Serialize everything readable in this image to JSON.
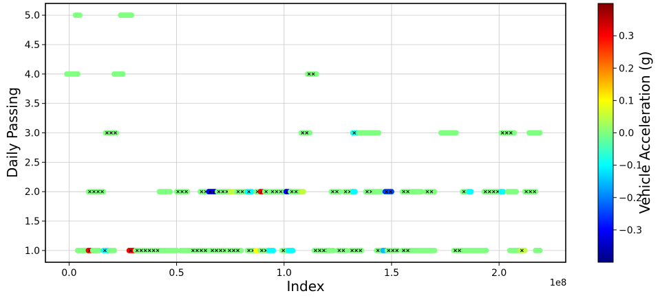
{
  "chart_data": {
    "type": "scatter",
    "xlabel": "Index",
    "ylabel": "Daily Passing",
    "x_offset_label": "1e8",
    "xlim": [
      -0.11,
      2.31
    ],
    "ylim": [
      0.8,
      5.2
    ],
    "xticks": [
      0.0,
      0.5,
      1.0,
      1.5,
      2.0
    ],
    "xtick_labels": [
      "0.0",
      "0.5",
      "1.0",
      "1.5",
      "2.0"
    ],
    "yticks": [
      1.0,
      1.5,
      2.0,
      2.5,
      3.0,
      3.5,
      4.0,
      4.5,
      5.0
    ],
    "ytick_labels": [
      "1.0",
      "1.5",
      "2.0",
      "2.5",
      "3.0",
      "3.5",
      "4.0",
      "4.5",
      "5.0"
    ],
    "grid": true,
    "colorbar": {
      "label": "Vehicle Acceleration (g)",
      "colormap": "jet",
      "range": [
        -0.4,
        0.4
      ],
      "ticks": [
        -0.3,
        -0.2,
        -0.1,
        0.0,
        0.1,
        0.2,
        0.3
      ],
      "tick_labels": [
        "−0.3",
        "−0.2",
        "−0.1",
        "0.0",
        "0.1",
        "0.2",
        "0.3"
      ]
    },
    "segments": [
      {
        "y": 5,
        "x_start": 0.03,
        "x_end": 0.05,
        "color_value": 0.0
      },
      {
        "y": 5,
        "x_start": 0.24,
        "x_end": 0.29,
        "color_value": 0.0
      },
      {
        "y": 4,
        "x_start": -0.01,
        "x_end": 0.04,
        "color_value": 0.0
      },
      {
        "y": 4,
        "x_start": 0.21,
        "x_end": 0.25,
        "color_value": 0.0
      },
      {
        "y": 4,
        "x_start": 1.11,
        "x_end": 1.15,
        "color_value": 0.0,
        "marked": true
      },
      {
        "y": 3,
        "x_start": 0.17,
        "x_end": 0.22,
        "color_value": 0.0,
        "marked": true
      },
      {
        "y": 3,
        "x_start": 1.08,
        "x_end": 1.12,
        "color_value": 0.0,
        "marked": true
      },
      {
        "y": 3,
        "x_start": 1.32,
        "x_end": 1.34,
        "color_value": -0.08,
        "marked": true
      },
      {
        "y": 3,
        "x_start": 1.35,
        "x_end": 1.4,
        "color_value": 0.0
      },
      {
        "y": 3,
        "x_start": 1.4,
        "x_end": 1.44,
        "color_value": 0.0
      },
      {
        "y": 3,
        "x_start": 1.73,
        "x_end": 1.8,
        "color_value": 0.0
      },
      {
        "y": 3,
        "x_start": 2.01,
        "x_end": 2.07,
        "color_value": 0.0,
        "marked": true
      },
      {
        "y": 3,
        "x_start": 2.14,
        "x_end": 2.19,
        "color_value": 0.0
      },
      {
        "y": 2,
        "x_start": 0.09,
        "x_end": 0.16,
        "color_value": 0.0,
        "marked": true
      },
      {
        "y": 2,
        "x_start": 0.42,
        "x_end": 0.47,
        "color_value": 0.0
      },
      {
        "y": 2,
        "x_start": 0.5,
        "x_end": 0.55,
        "color_value": 0.0,
        "marked": true
      },
      {
        "y": 2,
        "x_start": 0.61,
        "x_end": 0.65,
        "color_value": 0.0,
        "marked": true
      },
      {
        "y": 2,
        "x_start": 0.65,
        "x_end": 0.68,
        "color_value": -0.3,
        "marked": true
      },
      {
        "y": 2,
        "x_start": 0.69,
        "x_end": 0.75,
        "color_value": 0.0,
        "marked": true
      },
      {
        "y": 2,
        "x_start": 0.75,
        "x_end": 0.77,
        "color_value": 0.05
      },
      {
        "y": 2,
        "x_start": 0.78,
        "x_end": 0.83,
        "color_value": 0.0,
        "marked": true
      },
      {
        "y": 2,
        "x_start": 0.83,
        "x_end": 0.85,
        "color_value": -0.1,
        "marked": true
      },
      {
        "y": 2,
        "x_start": 0.87,
        "x_end": 0.89,
        "color_value": 0.0,
        "marked": true
      },
      {
        "y": 2,
        "x_start": 0.89,
        "x_end": 0.91,
        "color_value": 0.3,
        "marked": true
      },
      {
        "y": 2,
        "x_start": 0.91,
        "x_end": 0.93,
        "color_value": 0.0,
        "marked": true
      },
      {
        "y": 2,
        "x_start": 0.94,
        "x_end": 1.01,
        "color_value": 0.0,
        "marked": true
      },
      {
        "y": 2,
        "x_start": 1.01,
        "x_end": 1.03,
        "color_value": -0.3,
        "marked": true
      },
      {
        "y": 2,
        "x_start": 1.03,
        "x_end": 1.08,
        "color_value": 0.0,
        "marked": true
      },
      {
        "y": 2,
        "x_start": 1.08,
        "x_end": 1.09,
        "color_value": 0.05
      },
      {
        "y": 2,
        "x_start": 1.22,
        "x_end": 1.26,
        "color_value": 0.0,
        "marked": true
      },
      {
        "y": 2,
        "x_start": 1.28,
        "x_end": 1.32,
        "color_value": 0.0,
        "marked": true
      },
      {
        "y": 2,
        "x_start": 1.32,
        "x_end": 1.33,
        "color_value": -0.1
      },
      {
        "y": 2,
        "x_start": 1.38,
        "x_end": 1.42,
        "color_value": 0.0,
        "marked": true
      },
      {
        "y": 2,
        "x_start": 1.42,
        "x_end": 1.45,
        "color_value": 0.0
      },
      {
        "y": 2,
        "x_start": 1.47,
        "x_end": 1.5,
        "color_value": -0.25,
        "marked": true
      },
      {
        "y": 2,
        "x_start": 1.55,
        "x_end": 1.59,
        "color_value": 0.0,
        "marked": true
      },
      {
        "y": 2,
        "x_start": 1.6,
        "x_end": 1.64,
        "color_value": 0.0
      },
      {
        "y": 2,
        "x_start": 1.66,
        "x_end": 1.7,
        "color_value": 0.0,
        "marked": true
      },
      {
        "y": 2,
        "x_start": 1.83,
        "x_end": 1.86,
        "color_value": 0.0,
        "marked": true
      },
      {
        "y": 2,
        "x_start": 1.86,
        "x_end": 1.87,
        "color_value": -0.1
      },
      {
        "y": 2,
        "x_start": 1.93,
        "x_end": 2.01,
        "color_value": 0.0,
        "marked": true
      },
      {
        "y": 2,
        "x_start": 2.01,
        "x_end": 2.02,
        "color_value": -0.1
      },
      {
        "y": 2,
        "x_start": 2.04,
        "x_end": 2.08,
        "color_value": 0.0
      },
      {
        "y": 2,
        "x_start": 2.12,
        "x_end": 2.17,
        "color_value": 0.0,
        "marked": true
      },
      {
        "y": 1,
        "x_start": 0.04,
        "x_end": 0.09,
        "color_value": 0.0
      },
      {
        "y": 1,
        "x_start": 0.09,
        "x_end": 0.11,
        "color_value": 0.3,
        "marked": true
      },
      {
        "y": 1,
        "x_start": 0.11,
        "x_end": 0.14,
        "color_value": 0.0
      },
      {
        "y": 1,
        "x_start": 0.16,
        "x_end": 0.18,
        "color_value": -0.1,
        "marked": true
      },
      {
        "y": 1,
        "x_start": 0.19,
        "x_end": 0.21,
        "color_value": 0.0
      },
      {
        "y": 1,
        "x_start": 0.28,
        "x_end": 0.31,
        "color_value": 0.3,
        "marked": true
      },
      {
        "y": 1,
        "x_start": 0.31,
        "x_end": 0.43,
        "color_value": 0.0,
        "marked": true
      },
      {
        "y": 1,
        "x_start": 0.43,
        "x_end": 0.5,
        "color_value": 0.0
      },
      {
        "y": 1,
        "x_start": 0.52,
        "x_end": 0.57,
        "color_value": 0.0
      },
      {
        "y": 1,
        "x_start": 0.57,
        "x_end": 0.65,
        "color_value": 0.0,
        "marked": true
      },
      {
        "y": 1,
        "x_start": 0.66,
        "x_end": 0.74,
        "color_value": 0.0,
        "marked": true
      },
      {
        "y": 1,
        "x_start": 0.74,
        "x_end": 0.8,
        "color_value": 0.0,
        "marked": true
      },
      {
        "y": 1,
        "x_start": 0.83,
        "x_end": 0.87,
        "color_value": 0.0,
        "marked": true
      },
      {
        "y": 1,
        "x_start": 0.87,
        "x_end": 0.88,
        "color_value": 0.1
      },
      {
        "y": 1,
        "x_start": 0.89,
        "x_end": 0.93,
        "color_value": 0.0,
        "marked": true
      },
      {
        "y": 1,
        "x_start": 0.93,
        "x_end": 0.95,
        "color_value": -0.1
      },
      {
        "y": 1,
        "x_start": 0.99,
        "x_end": 1.02,
        "color_value": 0.0,
        "marked": true
      },
      {
        "y": 1,
        "x_start": 1.02,
        "x_end": 1.04,
        "color_value": -0.1
      },
      {
        "y": 1,
        "x_start": 1.14,
        "x_end": 1.21,
        "color_value": 0.0,
        "marked": true
      },
      {
        "y": 1,
        "x_start": 1.21,
        "x_end": 1.23,
        "color_value": 0.0
      },
      {
        "y": 1,
        "x_start": 1.25,
        "x_end": 1.29,
        "color_value": 0.0,
        "marked": true
      },
      {
        "y": 1,
        "x_start": 1.31,
        "x_end": 1.36,
        "color_value": 0.0,
        "marked": true
      },
      {
        "y": 1,
        "x_start": 1.43,
        "x_end": 1.46,
        "color_value": 0.0,
        "marked": true
      },
      {
        "y": 1,
        "x_start": 1.46,
        "x_end": 1.48,
        "color_value": -0.15
      },
      {
        "y": 1,
        "x_start": 1.48,
        "x_end": 1.53,
        "color_value": 0.0,
        "marked": true
      },
      {
        "y": 1,
        "x_start": 1.55,
        "x_end": 1.6,
        "color_value": 0.0,
        "marked": true
      },
      {
        "y": 1,
        "x_start": 1.6,
        "x_end": 1.7,
        "color_value": 0.0
      },
      {
        "y": 1,
        "x_start": 1.79,
        "x_end": 1.84,
        "color_value": 0.0,
        "marked": true
      },
      {
        "y": 1,
        "x_start": 1.84,
        "x_end": 1.94,
        "color_value": 0.0
      },
      {
        "y": 1,
        "x_start": 2.05,
        "x_end": 2.1,
        "color_value": 0.0
      },
      {
        "y": 1,
        "x_start": 2.1,
        "x_end": 2.12,
        "color_value": 0.05,
        "marked": true
      },
      {
        "y": 1,
        "x_start": 2.17,
        "x_end": 2.19,
        "color_value": 0.0
      }
    ]
  }
}
